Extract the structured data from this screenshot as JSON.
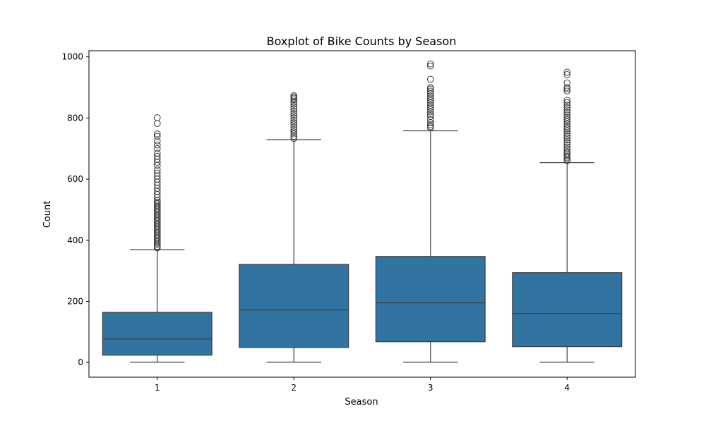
{
  "chart_data": {
    "type": "boxplot",
    "title": "Boxplot of Bike Counts by Season",
    "xlabel": "Season",
    "ylabel": "Count",
    "categories": [
      "1",
      "2",
      "3",
      "4"
    ],
    "ylim": [
      -48,
      1020
    ],
    "yticks": [
      0,
      200,
      400,
      600,
      800,
      1000
    ],
    "box_color": "#3274a1",
    "line_color": "#3d3d3d",
    "grid": false,
    "boxes": [
      {
        "category": "1",
        "min": 1,
        "q1": 24,
        "median": 77,
        "q3": 164,
        "whisker_high": 369,
        "outliers": [
          375,
          380,
          385,
          390,
          395,
          400,
          405,
          410,
          415,
          420,
          425,
          430,
          435,
          440,
          445,
          450,
          455,
          460,
          465,
          470,
          475,
          480,
          485,
          490,
          495,
          500,
          505,
          510,
          515,
          520,
          525,
          530,
          540,
          550,
          560,
          570,
          580,
          590,
          600,
          610,
          620,
          630,
          645,
          655,
          665,
          675,
          685,
          700,
          712,
          725,
          740,
          748,
          782,
          801
        ]
      },
      {
        "category": "2",
        "min": 1,
        "q1": 49,
        "median": 172,
        "q3": 321,
        "whisker_high": 729,
        "outliers": [
          733,
          740,
          748,
          755,
          762,
          770,
          778,
          785,
          792,
          800,
          808,
          815,
          822,
          830,
          838,
          845,
          852,
          860,
          865,
          869,
          873
        ]
      },
      {
        "category": "3",
        "min": 1,
        "q1": 68,
        "median": 195,
        "q3": 347,
        "whisker_high": 758,
        "outliers": [
          768,
          772,
          778,
          785,
          795,
          805,
          812,
          820,
          828,
          835,
          842,
          850,
          858,
          865,
          872,
          880,
          888,
          895,
          900,
          927,
          970,
          977
        ]
      },
      {
        "category": "4",
        "min": 1,
        "q1": 52,
        "median": 160,
        "q3": 294,
        "whisker_high": 654,
        "outliers": [
          660,
          665,
          670,
          675,
          680,
          685,
          690,
          698,
          705,
          712,
          720,
          728,
          735,
          742,
          750,
          758,
          765,
          772,
          780,
          788,
          795,
          802,
          810,
          818,
          826,
          834,
          842,
          850,
          858,
          888,
          895,
          900,
          915,
          942,
          950
        ]
      }
    ]
  }
}
